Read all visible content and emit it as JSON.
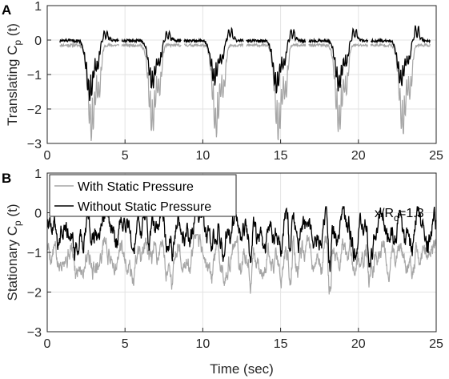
{
  "chart_data": [
    {
      "type": "line",
      "panel_label": "A",
      "xlabel": "",
      "ylabel": "Translating C",
      "ylabel_sub": "p",
      "ylabel_tail": " (t)",
      "xlim": [
        0,
        25
      ],
      "ylim": [
        -3,
        1
      ],
      "xticks": [
        "0",
        "5",
        "10",
        "15",
        "20",
        "25"
      ],
      "yticks": [
        "-3",
        "-2",
        "-1",
        "0",
        "1"
      ],
      "grid": true,
      "segments": [
        [
          0.8,
          4.6
        ],
        [
          4.8,
          8.6
        ],
        [
          8.8,
          12.6
        ],
        [
          12.8,
          16.6
        ],
        [
          16.8,
          20.6
        ],
        [
          20.8,
          24.6
        ]
      ],
      "series": [
        {
          "name": "With Static Pressure",
          "color": "#a6a6a6",
          "baseline": -0.15,
          "events": [
            {
              "t": 2.9,
              "min": -2.95,
              "secondary": -2.4,
              "peak_after": 0.0
            },
            {
              "t": 6.8,
              "min": -2.75,
              "secondary": -2.2,
              "peak_after": 0.0
            },
            {
              "t": 10.9,
              "min": -2.85,
              "secondary": -2.3,
              "peak_after": 0.0
            },
            {
              "t": 14.9,
              "min": -2.95,
              "secondary": -2.4,
              "peak_after": 0.0
            },
            {
              "t": 18.8,
              "min": -2.75,
              "secondary": -2.2,
              "peak_after": 0.0
            },
            {
              "t": 22.9,
              "min": -2.8,
              "secondary": -2.3,
              "peak_after": 0.0
            }
          ]
        },
        {
          "name": "Without Static Pressure",
          "color": "#000000",
          "baseline": -0.02,
          "events": [
            {
              "t": 2.8,
              "min": -1.8,
              "secondary": -1.2,
              "peak_after": 0.3
            },
            {
              "t": 6.8,
              "min": -1.45,
              "secondary": -1.0,
              "peak_after": 0.3
            },
            {
              "t": 10.8,
              "min": -1.3,
              "secondary": -0.9,
              "peak_after": 0.4
            },
            {
              "t": 14.8,
              "min": -1.55,
              "secondary": -1.1,
              "peak_after": 0.4
            },
            {
              "t": 18.8,
              "min": -1.5,
              "secondary": -1.0,
              "peak_after": 0.4
            },
            {
              "t": 22.8,
              "min": -1.35,
              "secondary": -0.95,
              "peak_after": 0.5
            }
          ]
        }
      ]
    },
    {
      "type": "line",
      "panel_label": "B",
      "xlabel": "Time (sec)",
      "ylabel": "Stationary C",
      "ylabel_sub": "p",
      "ylabel_tail": " (t)",
      "xlim": [
        0,
        25
      ],
      "ylim": [
        -3,
        1
      ],
      "xticks": [
        "0",
        "5",
        "10",
        "15",
        "20",
        "25"
      ],
      "yticks": [
        "-3",
        "-2",
        "-1",
        "0",
        "1"
      ],
      "grid": true,
      "legend_position": "top-left",
      "annotation": {
        "text": "x/R",
        "sub": "c",
        "tail": "=1.3"
      },
      "series": [
        {
          "name": "With Static Pressure",
          "color": "#a6a6a6",
          "mean": -1.15,
          "spread": 0.45,
          "range": [
            -2.55,
            -0.55
          ]
        },
        {
          "name": "Without Static Pressure",
          "color": "#000000",
          "mean": -0.45,
          "spread": 0.5,
          "range": [
            -2.3,
            0.15
          ]
        }
      ]
    }
  ]
}
